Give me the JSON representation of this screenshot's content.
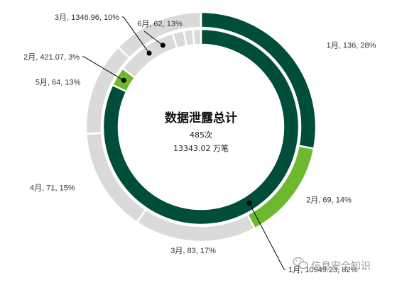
{
  "chart_data": {
    "type": "pie",
    "title": "数据泄露总计",
    "center_lines": [
      "485次",
      "13343.02 万笔"
    ],
    "colors": {
      "dark": "#004d3a",
      "green": "#6db92e",
      "grey": "#dadada",
      "white": "#ffffff"
    },
    "series": [
      {
        "ring": "outer",
        "unit": "次",
        "slices": [
          {
            "month": "1月",
            "value": 136,
            "percent": 28,
            "label": "1月, 136, 28%",
            "color": "#004d3a"
          },
          {
            "month": "2月",
            "value": 69,
            "percent": 14,
            "label": "2月, 69, 14%",
            "color": "#6db92e"
          },
          {
            "month": "3月",
            "value": 83,
            "percent": 17,
            "label": "3月, 83, 17%",
            "color": "#dadada"
          },
          {
            "month": "4月",
            "value": 71,
            "percent": 15,
            "label": "4月, 71, 15%",
            "color": "#dadada"
          },
          {
            "month": "5月",
            "value": 64,
            "percent": 13,
            "label": "5月, 64, 13%",
            "color": "#dadada"
          },
          {
            "month": "6月",
            "value": 62,
            "percent": 13,
            "label": "6月, 62, 13%",
            "color": "#dadada"
          }
        ]
      },
      {
        "ring": "inner",
        "unit": "万笔",
        "slices": [
          {
            "month": "1月",
            "value": 10949.23,
            "percent": 82,
            "label": "1月, 10949.23, 82%",
            "color": "#004d3a"
          },
          {
            "month": "2月",
            "value": 421.07,
            "percent": 3,
            "label": "2月, 421.07, 3%",
            "color": "#6db92e"
          },
          {
            "month": "3月",
            "value": 1346.96,
            "percent": 10,
            "label": "3月, 1346.96, 10%",
            "color": "#dadada"
          },
          {
            "month": "4月",
            "value": 250,
            "percent": 2,
            "label": "",
            "color": "#dadada"
          },
          {
            "month": "5月",
            "value": 200,
            "percent": 2,
            "label": "",
            "color": "#dadada"
          },
          {
            "month": "6月",
            "value": 175.76,
            "percent": 1,
            "label": "",
            "color": "#dadada"
          }
        ]
      }
    ]
  },
  "watermark": {
    "text": "信息安全知识",
    "icon": "wechat-icon"
  }
}
